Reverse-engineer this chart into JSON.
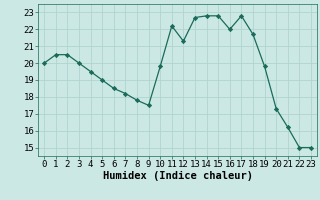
{
  "x": [
    0,
    1,
    2,
    3,
    4,
    5,
    6,
    7,
    8,
    9,
    10,
    11,
    12,
    13,
    14,
    15,
    16,
    17,
    18,
    19,
    20,
    21,
    22,
    23
  ],
  "y": [
    20.0,
    20.5,
    20.5,
    20.0,
    19.5,
    19.0,
    18.5,
    18.2,
    17.8,
    17.5,
    19.8,
    22.2,
    21.3,
    22.7,
    22.8,
    22.8,
    22.0,
    22.8,
    21.7,
    19.8,
    17.3,
    16.2,
    15.0,
    15.0
  ],
  "line_color": "#1a6b5a",
  "marker": "D",
  "marker_size": 2.2,
  "bg_color": "#cce8e5",
  "grid_color": "#b0d4d0",
  "xlabel": "Humidex (Indice chaleur)",
  "ylim": [
    14.5,
    23.5
  ],
  "xlim": [
    -0.5,
    23.5
  ],
  "yticks": [
    15,
    16,
    17,
    18,
    19,
    20,
    21,
    22,
    23
  ],
  "xticks": [
    0,
    1,
    2,
    3,
    4,
    5,
    6,
    7,
    8,
    9,
    10,
    11,
    12,
    13,
    14,
    15,
    16,
    17,
    18,
    19,
    20,
    21,
    22,
    23
  ],
  "tick_label_fontsize": 6.5,
  "xlabel_fontsize": 7.5
}
